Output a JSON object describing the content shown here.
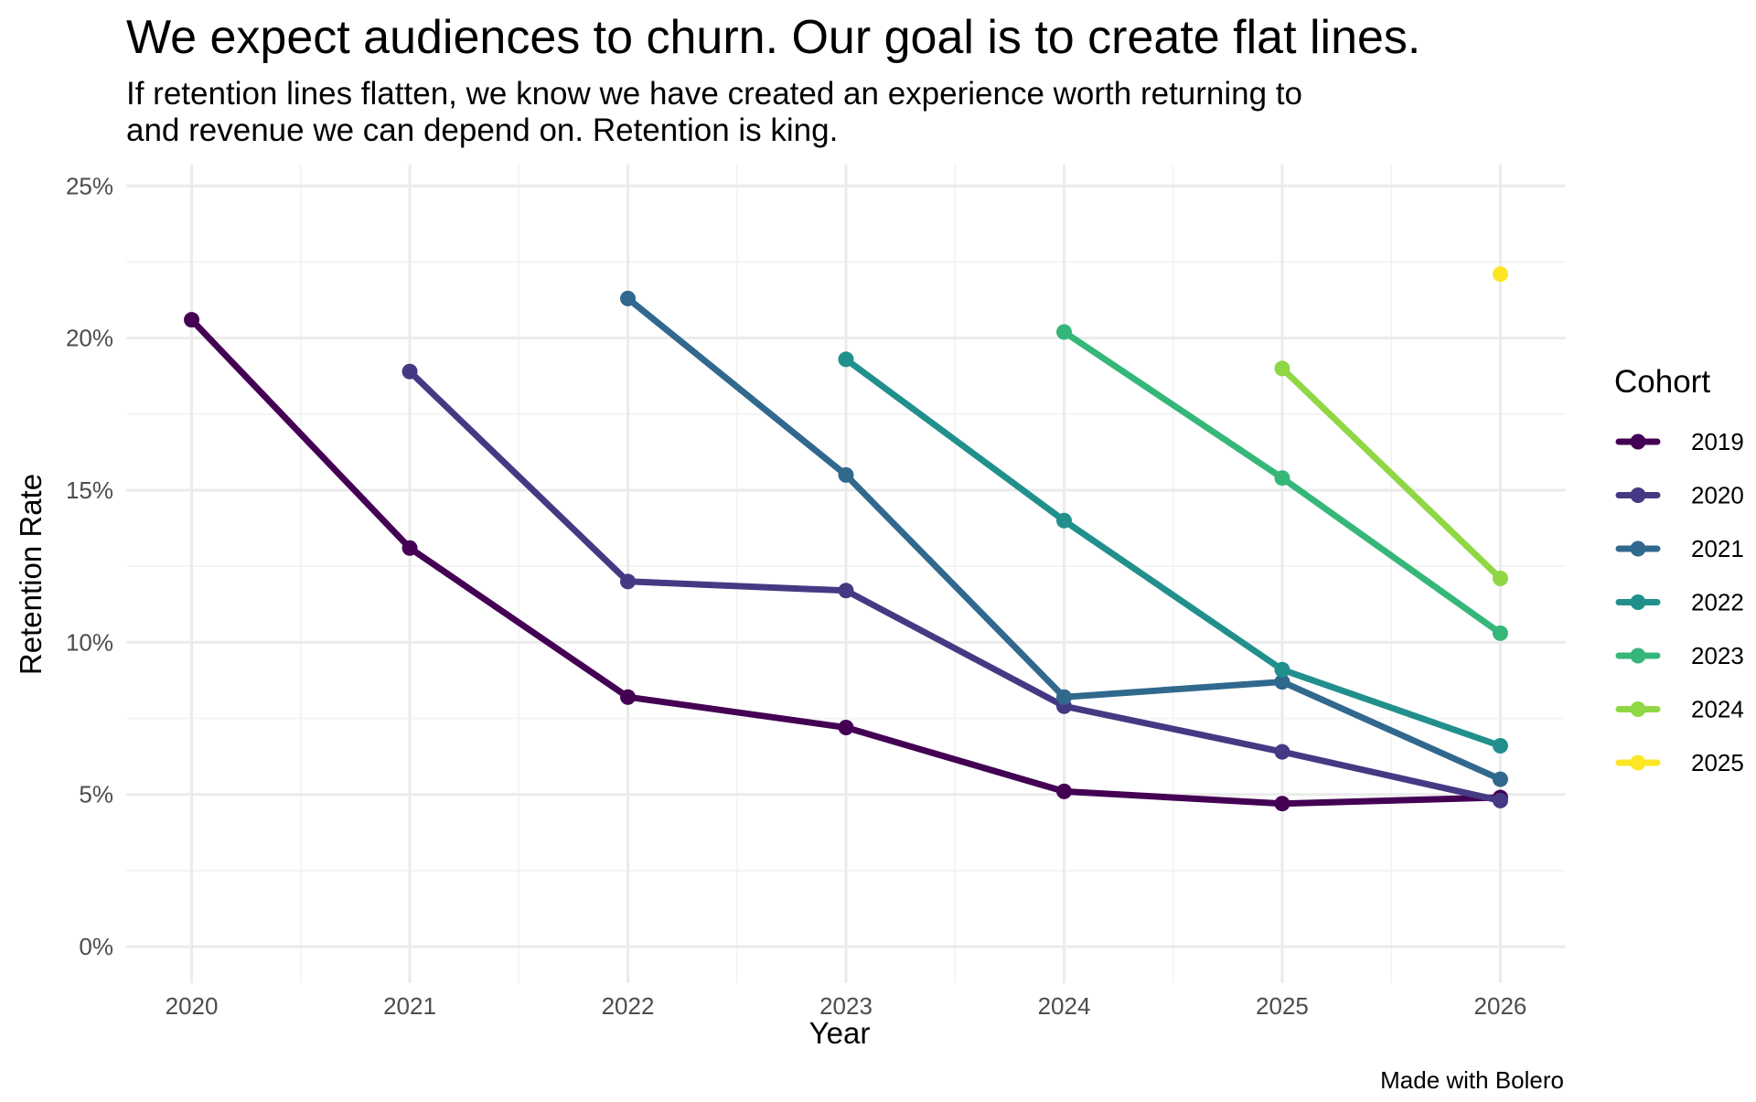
{
  "chart_data": {
    "type": "line",
    "title": "We expect audiences to churn. Our goal is to create flat lines.",
    "subtitle_lines": [
      "If retention lines flatten, we know we have created an experience worth returning to",
      "and revenue we can depend on. Retention is king."
    ],
    "xlabel": "Year",
    "ylabel": "Retention Rate",
    "x": [
      2020,
      2021,
      2022,
      2023,
      2024,
      2025,
      2026
    ],
    "x_tick_labels": [
      "2020",
      "2021",
      "2022",
      "2023",
      "2024",
      "2025",
      "2026"
    ],
    "xlim": [
      2019.7,
      2026.3
    ],
    "ylim": [
      -1.2,
      25.7
    ],
    "y_ticks": [
      0,
      5,
      10,
      15,
      20,
      25
    ],
    "y_tick_labels": [
      "0%",
      "5%",
      "10%",
      "15%",
      "20%",
      "25%"
    ],
    "y_unit": "%",
    "grid": true,
    "legend_title": "Cohort",
    "legend_position": "right",
    "series": [
      {
        "name": "2019",
        "color": "#440154",
        "x": [
          2020,
          2021,
          2022,
          2023,
          2024,
          2025,
          2026
        ],
        "values": [
          20.6,
          13.1,
          8.2,
          7.2,
          5.1,
          4.7,
          4.9
        ]
      },
      {
        "name": "2020",
        "color": "#443A83",
        "x": [
          2021,
          2022,
          2023,
          2024,
          2025,
          2026
        ],
        "values": [
          18.9,
          12.0,
          11.7,
          7.9,
          6.4,
          4.8
        ]
      },
      {
        "name": "2021",
        "color": "#31688E",
        "x": [
          2022,
          2023,
          2024,
          2025,
          2026
        ],
        "values": [
          21.3,
          15.5,
          8.2,
          8.7,
          5.5
        ]
      },
      {
        "name": "2022",
        "color": "#21908C",
        "x": [
          2023,
          2024,
          2025,
          2026
        ],
        "values": [
          19.3,
          14.0,
          9.1,
          6.6
        ]
      },
      {
        "name": "2023",
        "color": "#35B779",
        "x": [
          2024,
          2025,
          2026
        ],
        "values": [
          20.2,
          15.4,
          10.3
        ]
      },
      {
        "name": "2024",
        "color": "#8FD744",
        "x": [
          2025,
          2026
        ],
        "values": [
          19.0,
          12.1
        ]
      },
      {
        "name": "2025",
        "color": "#FDE725",
        "x": [
          2026
        ],
        "values": [
          22.1
        ]
      }
    ],
    "caption": "Made with Bolero"
  }
}
